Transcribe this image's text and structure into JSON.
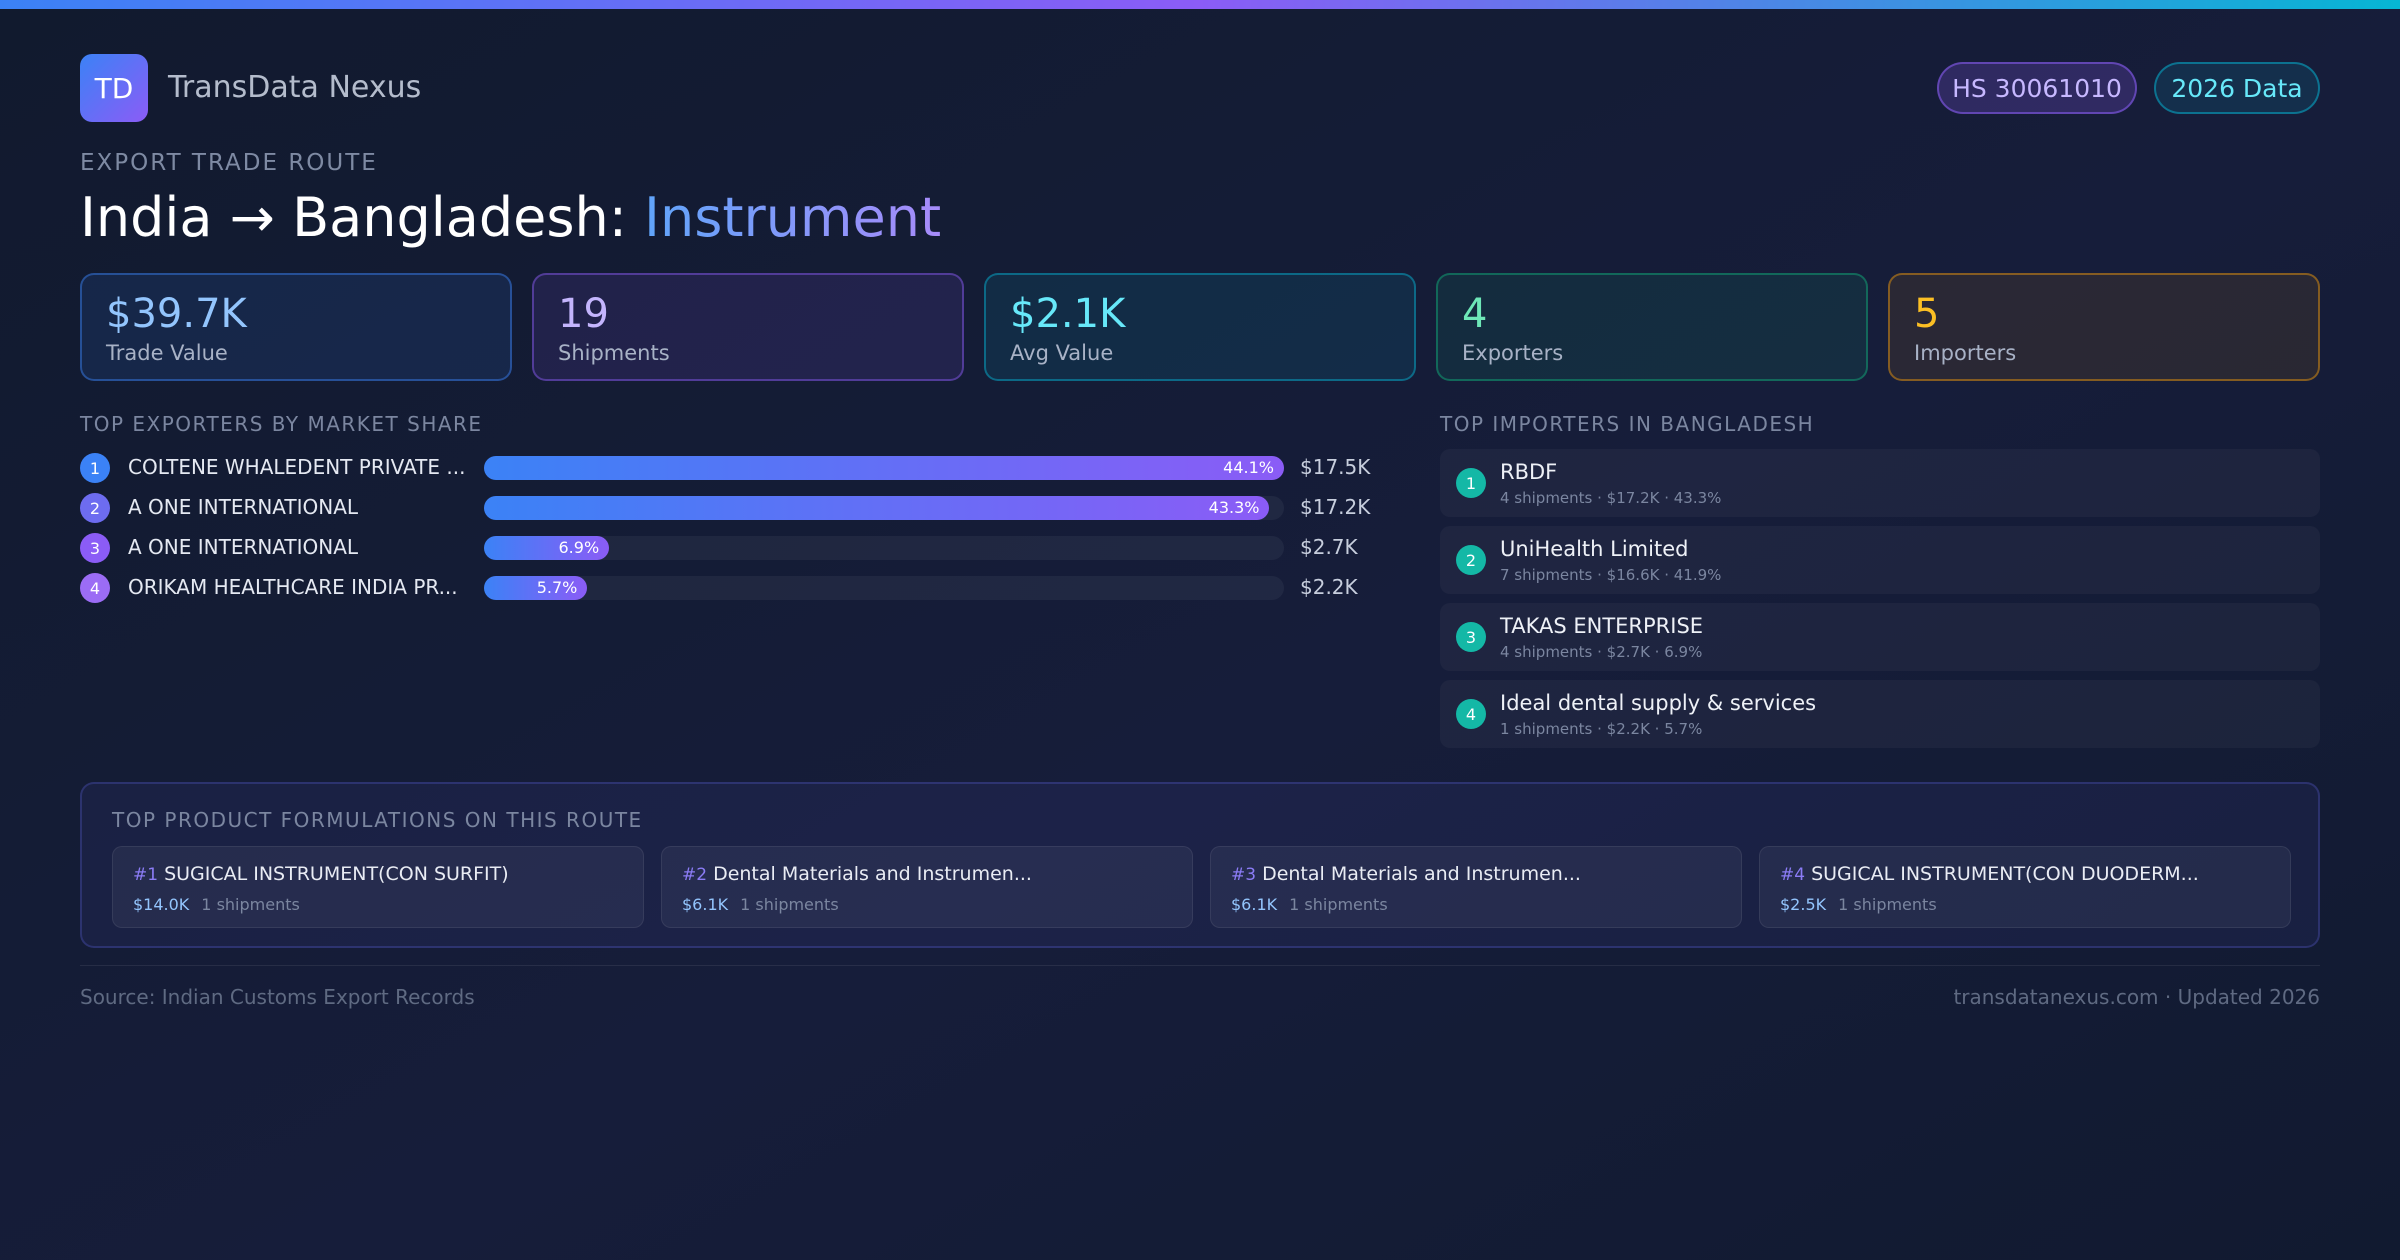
{
  "colors": {
    "accent_blue": "#3b82f6",
    "accent_purple": "#8b5cf6",
    "accent_cyan": "#06b6d4",
    "accent_green": "#10b981",
    "accent_amber": "#f59e0b",
    "background": "#121a30"
  },
  "header": {
    "logo": "TD",
    "brand": "TransData Nexus",
    "hs_badge": "HS 30061010",
    "year_badge": "2026 Data"
  },
  "route": {
    "eyebrow": "EXPORT TRADE ROUTE",
    "title_main": "India → Bangladesh: ",
    "title_accent": "Instrument"
  },
  "stats": [
    {
      "value": "$39.7K",
      "label": "Trade Value"
    },
    {
      "value": "19",
      "label": "Shipments"
    },
    {
      "value": "$2.1K",
      "label": "Avg Value"
    },
    {
      "value": "4",
      "label": "Exporters"
    },
    {
      "value": "5",
      "label": "Importers"
    }
  ],
  "exporters": {
    "label": "TOP EXPORTERS BY MARKET SHARE",
    "items": [
      {
        "rank": "1",
        "name": "COLTENE WHALEDENT PRIVATE ...",
        "pct": "44.1%",
        "share": 44.1,
        "value": "$17.5K",
        "color": "#3b82f6"
      },
      {
        "rank": "2",
        "name": "A ONE INTERNATIONAL",
        "pct": "43.3%",
        "share": 43.3,
        "value": "$17.2K",
        "color": "#6d6cf0"
      },
      {
        "rank": "3",
        "name": "A ONE INTERNATIONAL",
        "pct": "6.9%",
        "share": 6.9,
        "value": "$2.7K",
        "color": "#8b5cf6"
      },
      {
        "rank": "4",
        "name": "ORIKAM HEALTHCARE INDIA PR...",
        "pct": "5.7%",
        "share": 5.7,
        "value": "$2.2K",
        "color": "#9b6cf5"
      }
    ]
  },
  "importers": {
    "label": "TOP IMPORTERS IN BANGLADESH",
    "items": [
      {
        "rank": "1",
        "name": "RBDF",
        "meta": "4 shipments · $17.2K · 43.3%"
      },
      {
        "rank": "2",
        "name": "UniHealth Limited",
        "meta": "7 shipments · $16.6K · 41.9%"
      },
      {
        "rank": "3",
        "name": "TAKAS ENTERPRISE",
        "meta": "4 shipments · $2.7K · 6.9%"
      },
      {
        "rank": "4",
        "name": "Ideal dental supply & services",
        "meta": "1 shipments · $2.2K · 5.7%"
      }
    ]
  },
  "products": {
    "label": "TOP PRODUCT FORMULATIONS ON THIS ROUTE",
    "items": [
      {
        "rank": "#1",
        "name": "SUGICAL INSTRUMENT(CON SURFIT)",
        "value": "$14.0K",
        "shipments": "1 shipments"
      },
      {
        "rank": "#2",
        "name": "Dental Materials and Instrumen...",
        "value": "$6.1K",
        "shipments": "1 shipments"
      },
      {
        "rank": "#3",
        "name": "Dental Materials and Instrumen...",
        "value": "$6.1K",
        "shipments": "1 shipments"
      },
      {
        "rank": "#4",
        "name": "SUGICAL INSTRUMENT(CON DUODERM...",
        "value": "$2.5K",
        "shipments": "1 shipments"
      }
    ]
  },
  "footer": {
    "source": "Source: Indian Customs Export Records",
    "site": "transdatanexus.com · Updated 2026"
  }
}
